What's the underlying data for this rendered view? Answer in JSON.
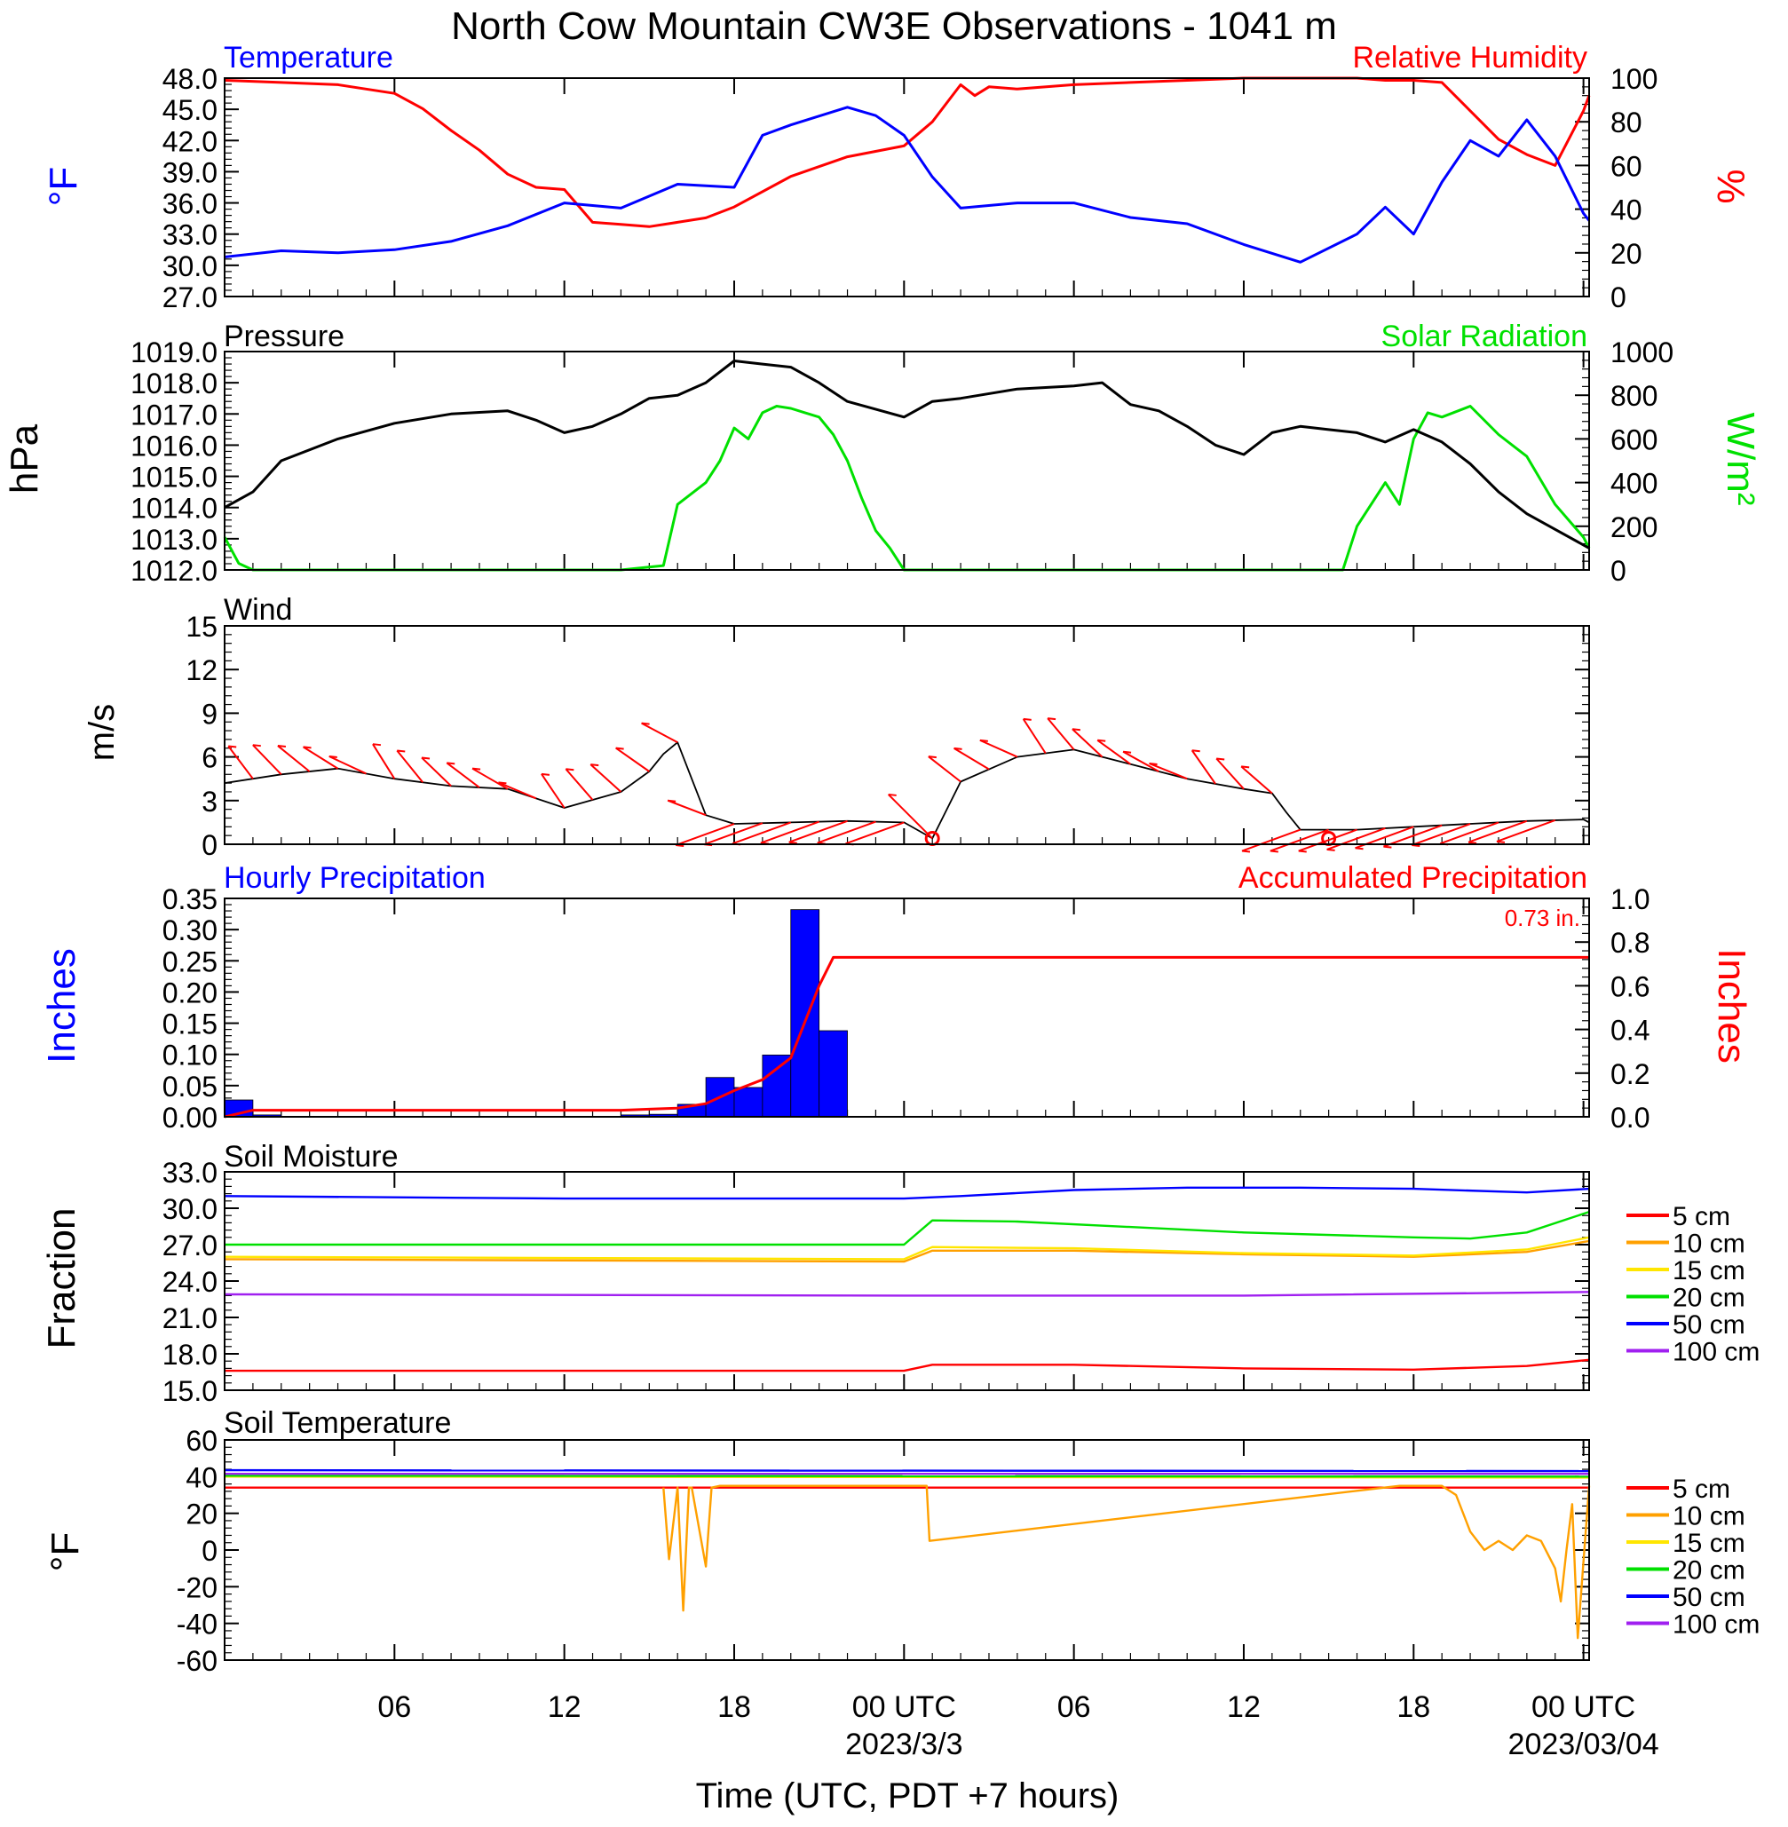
{
  "title": "North Cow Mountain CW3E Observations - 1041 m",
  "x_axis": {
    "label": "Time (UTC, PDT +7 hours)",
    "ticks": [
      {
        "hour": 6,
        "label": "06"
      },
      {
        "hour": 12,
        "label": "12"
      },
      {
        "hour": 18,
        "label": "18"
      },
      {
        "hour": 24,
        "label": "00 UTC"
      },
      {
        "hour": 30,
        "label": "06"
      },
      {
        "hour": 36,
        "label": "12"
      },
      {
        "hour": 42,
        "label": "18"
      },
      {
        "hour": 48,
        "label": "00 UTC"
      }
    ],
    "dates": [
      {
        "hour": 24,
        "label": "2023/3/3"
      },
      {
        "hour": 48,
        "label": "2023/03/04"
      }
    ],
    "range_hours": [
      0,
      48.2
    ]
  },
  "panels": {
    "temp_rh": {
      "left_title": "Temperature",
      "right_title": "Relative Humidity",
      "left_unit": "°F",
      "right_unit": "%",
      "left_ticks": [
        "48.0",
        "45.0",
        "42.0",
        "39.0",
        "36.0",
        "33.0",
        "30.0",
        "27.0"
      ],
      "right_ticks": [
        "100",
        "80",
        "60",
        "40",
        "20",
        "0"
      ]
    },
    "pressure_solar": {
      "left_title": "Pressure",
      "right_title": "Solar Radiation",
      "left_unit": "hPa",
      "right_unit": "W/m²",
      "left_ticks": [
        "1019.0",
        "1018.0",
        "1017.0",
        "1016.0",
        "1015.0",
        "1014.0",
        "1013.0",
        "1012.0"
      ],
      "right_ticks": [
        "1000",
        "800",
        "600",
        "400",
        "200",
        "0"
      ]
    },
    "wind": {
      "left_title": "Wind",
      "left_unit": "m/s",
      "left_ticks": [
        "15",
        "12",
        "9",
        "6",
        "3",
        "0"
      ]
    },
    "precip": {
      "left_title": "Hourly Precipitation",
      "right_title": "Accumulated Precipitation",
      "left_unit": "Inches",
      "right_unit": "Inches",
      "total_label": "0.73 in.",
      "left_ticks": [
        "0.35",
        "0.30",
        "0.25",
        "0.20",
        "0.15",
        "0.10",
        "0.05",
        "0.00"
      ],
      "right_ticks": [
        "1.0",
        "0.8",
        "0.6",
        "0.4",
        "0.2",
        "0.0"
      ]
    },
    "soil_moisture": {
      "left_title": "Soil Moisture",
      "left_unit": "Fraction",
      "left_ticks": [
        "33.0",
        "30.0",
        "27.0",
        "24.0",
        "21.0",
        "18.0",
        "15.0"
      ]
    },
    "soil_temp": {
      "left_title": "Soil Temperature",
      "left_unit": "°F",
      "left_ticks": [
        "60",
        "40",
        "20",
        "0",
        "-20",
        "-40",
        "-60"
      ]
    }
  },
  "legend": {
    "moisture": [
      "5 cm",
      "10 cm",
      "15 cm",
      "20 cm",
      "50 cm",
      "100 cm"
    ],
    "soil_temp": [
      "5 cm",
      "10 cm",
      "15 cm",
      "20 cm",
      "50 cm",
      "100 cm"
    ]
  },
  "colors": {
    "temperature": "#0000ff",
    "rh": "#ff0000",
    "pressure": "#000000",
    "solar": "#00e000",
    "wind": "#000000",
    "wind_barb": "#ff0000",
    "precip_bar": "#0000ff",
    "accum": "#ff0000",
    "depths": [
      "#ff0000",
      "#ffa000",
      "#ffe600",
      "#00e000",
      "#0000ff",
      "#a020f0"
    ]
  },
  "chart_data": [
    {
      "type": "line",
      "title": "Temperature",
      "ylabel": "°F",
      "ylim": [
        27,
        48
      ],
      "series": [
        {
          "name": "Temperature",
          "x": [
            0,
            2,
            4,
            6,
            8,
            10,
            12,
            14,
            16,
            18,
            19,
            20,
            22,
            23,
            24,
            25,
            26,
            28,
            30,
            32,
            34,
            36,
            38,
            40,
            41,
            42,
            43,
            44,
            45,
            46,
            47,
            48,
            48.2
          ],
          "y": [
            30.8,
            31.4,
            31.2,
            31.5,
            32.3,
            33.8,
            36,
            35.5,
            37.8,
            37.5,
            42.5,
            43.5,
            45.2,
            44.4,
            42.5,
            38.5,
            35.5,
            36,
            36,
            34.6,
            34,
            32,
            30.3,
            33,
            35.6,
            33,
            38,
            42,
            40.5,
            44,
            40.5,
            35,
            34.3
          ]
        }
      ]
    },
    {
      "type": "line",
      "title": "Relative Humidity",
      "ylabel": "%",
      "ylim": [
        0,
        100
      ],
      "series": [
        {
          "name": "Relative Humidity",
          "x": [
            0,
            2,
            4,
            5,
            6,
            7,
            8,
            9,
            10,
            11,
            12,
            13,
            14,
            15,
            16,
            17,
            18,
            20,
            22,
            24,
            25,
            26,
            26.5,
            27,
            28,
            30,
            32,
            34,
            36,
            38,
            40,
            41,
            42,
            43,
            44,
            45,
            46,
            47,
            48,
            48.2
          ],
          "y": [
            99,
            98,
            97,
            95,
            93,
            86,
            76,
            67,
            56,
            50,
            49,
            34,
            33,
            32,
            34,
            36,
            41,
            55,
            64,
            69,
            80,
            97,
            92,
            96,
            95,
            97,
            98,
            99,
            100,
            100,
            100,
            99,
            99,
            98,
            85,
            72,
            65,
            60,
            85,
            92
          ]
        }
      ]
    },
    {
      "type": "line",
      "title": "Pressure",
      "ylabel": "hPa",
      "ylim": [
        1012,
        1019
      ],
      "series": [
        {
          "name": "Pressure",
          "x": [
            0,
            1,
            2,
            4,
            6,
            8,
            10,
            11,
            12,
            13,
            14,
            15,
            16,
            17,
            18,
            19,
            20,
            21,
            22,
            24,
            25,
            26,
            28,
            30,
            31,
            32,
            33,
            34,
            35,
            36,
            37,
            38,
            39,
            40,
            41,
            42,
            43,
            44,
            45,
            46,
            47,
            48,
            48.2
          ],
          "y": [
            1014,
            1014.5,
            1015.5,
            1016.2,
            1016.7,
            1017,
            1017.1,
            1016.8,
            1016.4,
            1016.6,
            1017,
            1017.5,
            1017.6,
            1018,
            1018.7,
            1018.6,
            1018.5,
            1018,
            1017.4,
            1016.9,
            1017.4,
            1017.5,
            1017.8,
            1017.9,
            1018,
            1017.3,
            1017.1,
            1016.6,
            1016,
            1015.7,
            1016.4,
            1016.6,
            1016.5,
            1016.4,
            1016.1,
            1016.5,
            1016.1,
            1015.4,
            1014.5,
            1013.8,
            1013.3,
            1012.8,
            1012.7
          ]
        }
      ]
    },
    {
      "type": "line",
      "title": "Solar Radiation",
      "ylabel": "W/m²",
      "ylim": [
        0,
        1000
      ],
      "series": [
        {
          "name": "Solar Radiation",
          "x": [
            0,
            0.5,
            1,
            1.5,
            14,
            15.5,
            16,
            17,
            17.5,
            18,
            18.5,
            19,
            19.5,
            20,
            20.5,
            21,
            21.5,
            22,
            22.5,
            23,
            23.5,
            24,
            28,
            34,
            38,
            39.5,
            40,
            41,
            41.5,
            42,
            42.5,
            43,
            44,
            45,
            46,
            47,
            48,
            48.2
          ],
          "y": [
            150,
            30,
            0,
            0,
            0,
            20,
            300,
            400,
            500,
            650,
            600,
            720,
            750,
            740,
            720,
            700,
            620,
            500,
            330,
            180,
            100,
            0,
            0,
            0,
            0,
            0,
            200,
            400,
            300,
            600,
            720,
            700,
            750,
            620,
            520,
            300,
            150,
            100
          ]
        }
      ]
    },
    {
      "type": "line",
      "title": "Wind",
      "ylabel": "m/s",
      "ylim": [
        0,
        15
      ],
      "series": [
        {
          "name": "Wind",
          "x": [
            0,
            2,
            4,
            6,
            8,
            10,
            12,
            14,
            15,
            15.5,
            16,
            17,
            18,
            20,
            22,
            24,
            25,
            26,
            28,
            30,
            32,
            34,
            36,
            37,
            37.5,
            38,
            40,
            42,
            44,
            46,
            48,
            48.2
          ],
          "y": [
            4.2,
            4.8,
            5.2,
            4.5,
            4,
            3.8,
            2.5,
            3.6,
            5,
            6.2,
            7,
            2,
            1.4,
            1.5,
            1.6,
            1.5,
            0.4,
            4.3,
            6,
            6.5,
            5.5,
            4.5,
            3.8,
            3.5,
            2.2,
            1,
            1,
            1.2,
            1.4,
            1.6,
            1.7,
            1.5
          ]
        }
      ]
    },
    {
      "type": "bar",
      "title": "Hourly Precipitation",
      "ylabel": "Inches",
      "ylim": [
        0,
        0.35
      ],
      "x": [
        0.5,
        1.5,
        14.5,
        15.5,
        16.5,
        17.5,
        18.5,
        19.5,
        20.5,
        21.5
      ],
      "values": [
        0.027,
        0.003,
        0.003,
        0.004,
        0.02,
        0.063,
        0.047,
        0.099,
        0.332,
        0.138
      ]
    },
    {
      "type": "line",
      "title": "Accumulated Precipitation",
      "ylabel": "Inches",
      "ylim": [
        0,
        1
      ],
      "series": [
        {
          "name": "Accumulated Precipitation",
          "x": [
            0,
            1,
            2,
            14,
            15,
            16,
            17,
            18,
            19,
            20,
            21,
            21.5,
            48.2
          ],
          "y": [
            0,
            0.03,
            0.03,
            0.03,
            0.035,
            0.04,
            0.06,
            0.12,
            0.17,
            0.27,
            0.6,
            0.73,
            0.73
          ]
        }
      ]
    },
    {
      "type": "line",
      "title": "Soil Moisture",
      "ylabel": "Fraction",
      "ylim": [
        15,
        33
      ],
      "series": [
        {
          "name": "5 cm",
          "x": [
            0,
            24,
            25,
            30,
            36,
            42,
            46,
            48.2
          ],
          "y": [
            16.6,
            16.6,
            17.1,
            17.1,
            16.8,
            16.7,
            17,
            17.5
          ]
        },
        {
          "name": "10 cm",
          "x": [
            0,
            24,
            25,
            30,
            36,
            42,
            46,
            48.2
          ],
          "y": [
            25.8,
            25.6,
            26.5,
            26.5,
            26.2,
            26,
            26.4,
            27.3
          ]
        },
        {
          "name": "15 cm",
          "x": [
            0,
            24,
            25,
            30,
            36,
            42,
            46,
            48.2
          ],
          "y": [
            26,
            25.8,
            26.8,
            26.7,
            26.3,
            26.1,
            26.6,
            27.6
          ]
        },
        {
          "name": "20 cm",
          "x": [
            0,
            24,
            25,
            28,
            36,
            42,
            44,
            46,
            48.2
          ],
          "y": [
            27,
            27,
            29,
            28.9,
            28,
            27.6,
            27.5,
            28,
            29.7
          ]
        },
        {
          "name": "50 cm",
          "x": [
            0,
            12,
            24,
            26,
            30,
            34,
            38,
            42,
            46,
            48.2
          ],
          "y": [
            31,
            30.8,
            30.8,
            31,
            31.5,
            31.7,
            31.7,
            31.6,
            31.3,
            31.6
          ]
        },
        {
          "name": "100 cm",
          "x": [
            0,
            24,
            36,
            48.2
          ],
          "y": [
            22.9,
            22.8,
            22.8,
            23.1
          ]
        }
      ]
    },
    {
      "type": "line",
      "title": "Soil Temperature",
      "ylabel": "°F",
      "ylim": [
        -60,
        60
      ],
      "series": [
        {
          "name": "5 cm",
          "x": [
            0,
            48.2
          ],
          "y": [
            34,
            34
          ]
        },
        {
          "name": "10 cm",
          "x": [
            15.5,
            15.7,
            16,
            16.2,
            16.4,
            16.5,
            17,
            17.2,
            17.5,
            23.9,
            24.8,
            24.9,
            41.5,
            43,
            43.5,
            44,
            44.5,
            45,
            45.5,
            46,
            46.5,
            47,
            47.2,
            47.4,
            47.6,
            47.8,
            48.2
          ],
          "y": [
            34,
            -5,
            34,
            -33,
            34,
            34,
            -9,
            34,
            35,
            35,
            35,
            5,
            35,
            35,
            30,
            10,
            0,
            5,
            0,
            8,
            5,
            -10,
            -28,
            0,
            25,
            -48,
            35
          ]
        },
        {
          "name": "15 cm",
          "x": [
            0,
            48.2
          ],
          "y": [
            40,
            39.5
          ]
        },
        {
          "name": "20 cm",
          "x": [
            0,
            48.2
          ],
          "y": [
            40.5,
            40
          ]
        },
        {
          "name": "50 cm",
          "x": [
            0,
            48.2
          ],
          "y": [
            43.5,
            43
          ]
        },
        {
          "name": "100 cm",
          "x": [
            0,
            48.2
          ],
          "y": [
            41.5,
            41.5
          ]
        }
      ]
    }
  ]
}
